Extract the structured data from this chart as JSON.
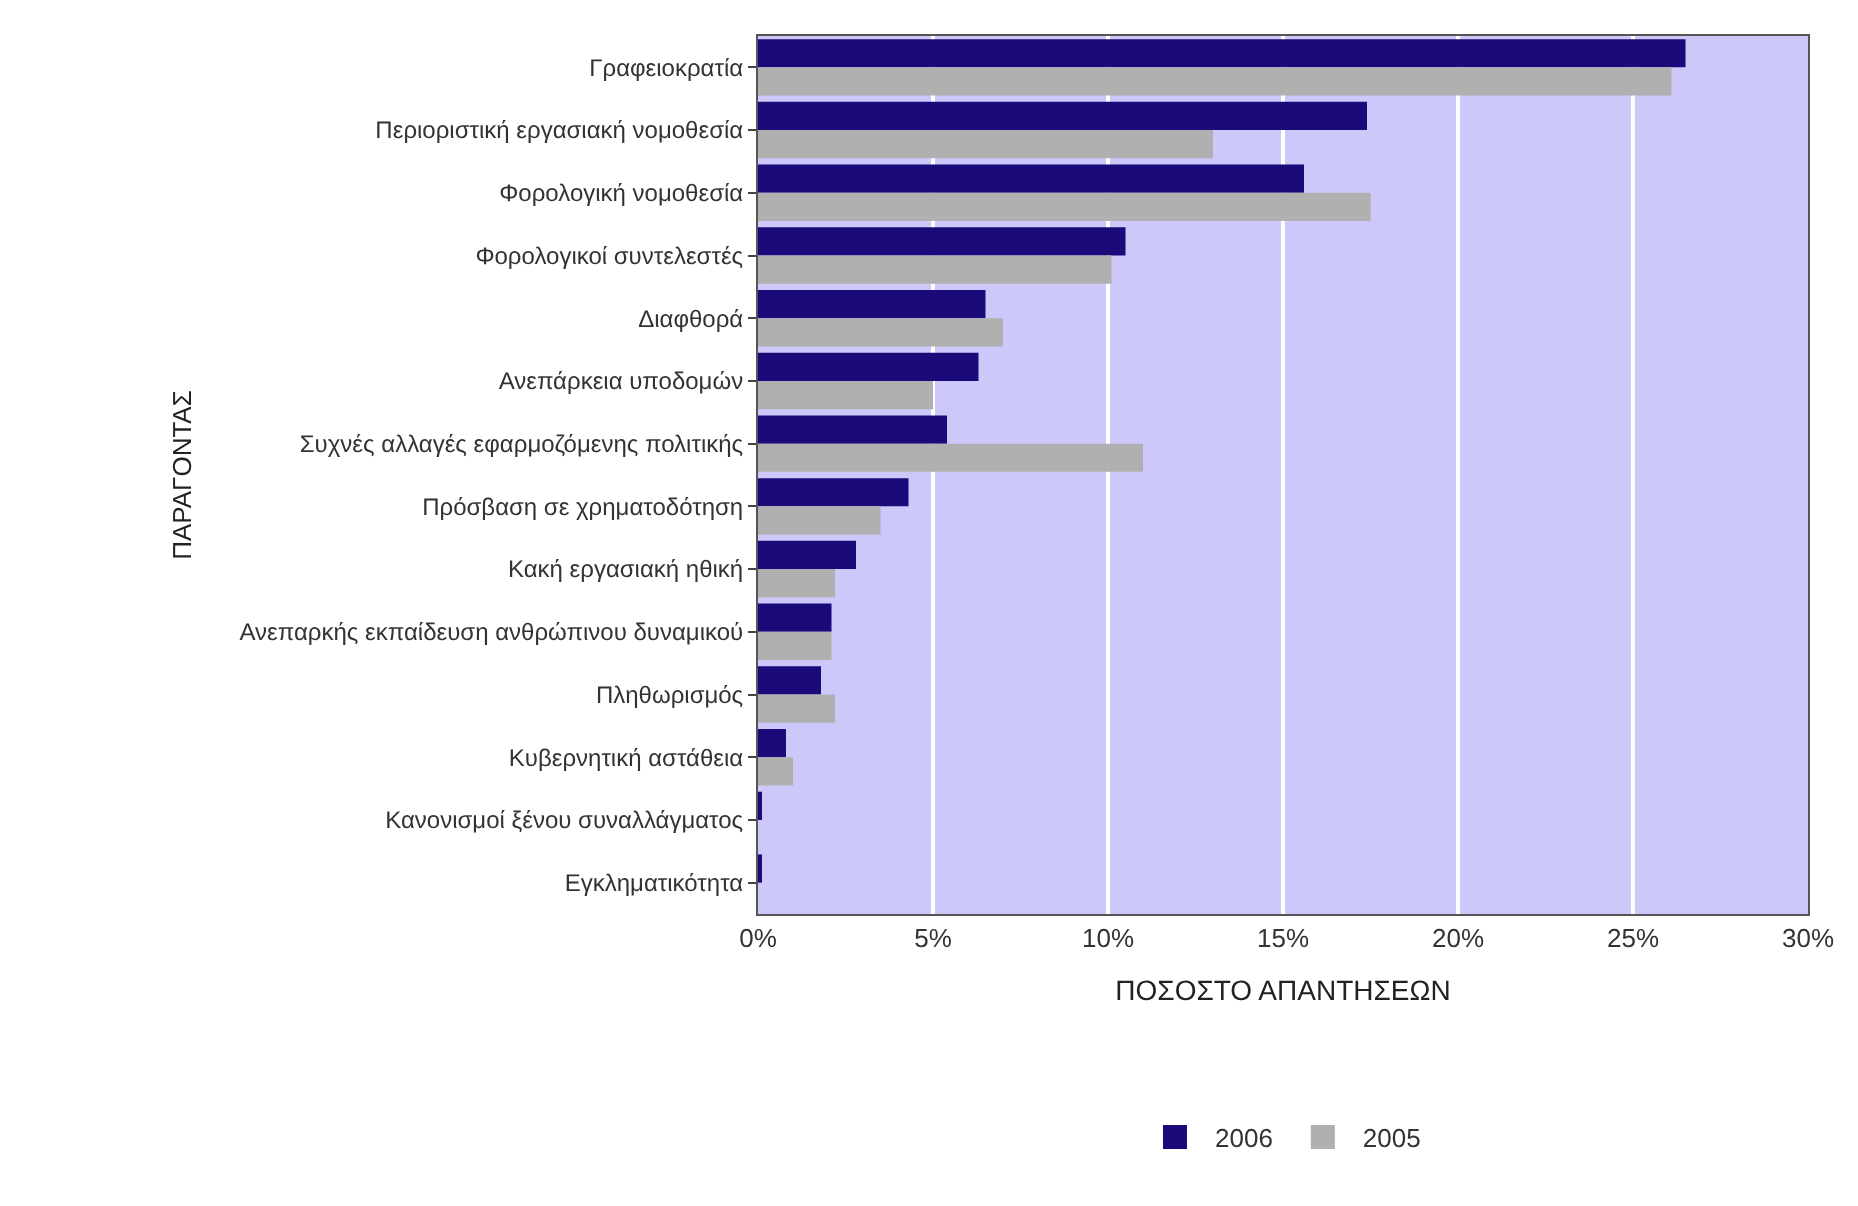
{
  "chart_data": {
    "type": "bar",
    "orientation": "horizontal",
    "categories": [
      "Γραφειοκρατία",
      "Περιοριστική εργασιακή νομοθεσία",
      "Φορολογική νομοθεσία",
      "Φορολογικοί συντελεστές",
      "Διαφθορά",
      "Ανεπάρκεια υποδομών",
      "Συχνές αλλαγές εφαρμοζόμενης πολιτικής",
      "Πρόσβαση σε χρηματοδότηση",
      "Κακή εργασιακή ηθική",
      "Ανεπαρκής εκπαίδευση ανθρώπινου δυναμικού",
      "Πληθωρισμός",
      "Κυβερνητική αστάθεια",
      "Κανονισμοί ξένου συναλλάγματος",
      "Εγκληματικότητα"
    ],
    "series": [
      {
        "name": "2006",
        "color": "#1a0a7a",
        "values": [
          26.5,
          17.4,
          15.6,
          10.5,
          6.5,
          6.3,
          5.4,
          4.3,
          2.8,
          2.1,
          1.8,
          0.8,
          0.1,
          0.1
        ]
      },
      {
        "name": "2005",
        "color": "#b0b0b0",
        "values": [
          26.1,
          13.0,
          17.5,
          10.1,
          7.0,
          5.0,
          11.0,
          3.5,
          2.2,
          2.1,
          2.2,
          1.0,
          0.0,
          0.0
        ]
      }
    ],
    "xlabel": "ΠΟΣΟΣΤΟ ΑΠΑΝΤΗΣΕΩΝ",
    "ylabel": "ΠΑΡΑΓΟΝΤΑΣ",
    "xlim": [
      0,
      30
    ],
    "xticks": [
      {
        "value": 0,
        "label": "0%"
      },
      {
        "value": 5,
        "label": "5%"
      },
      {
        "value": 10,
        "label": "10%"
      },
      {
        "value": 15,
        "label": "15%"
      },
      {
        "value": 20,
        "label": "20%"
      },
      {
        "value": 25,
        "label": "25%"
      },
      {
        "value": 30,
        "label": "30%"
      }
    ],
    "grid": "x",
    "legend": "bottom"
  }
}
